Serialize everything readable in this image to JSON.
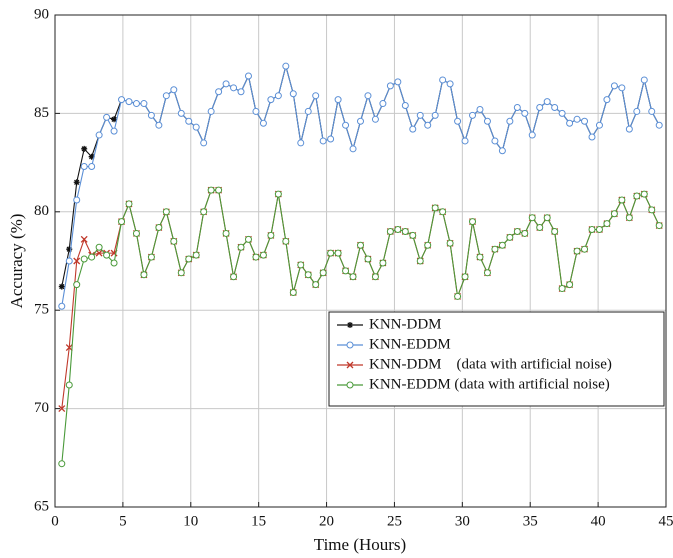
{
  "chart_data": {
    "type": "line",
    "xlabel": "Time (Hours)",
    "ylabel": "Accuracy (%)",
    "xlim": [
      0,
      45
    ],
    "xticks": [
      0,
      5,
      10,
      15,
      20,
      25,
      30,
      35,
      40,
      45
    ],
    "ylim": [
      65,
      90
    ],
    "yticks": [
      65,
      70,
      75,
      80,
      85,
      90
    ],
    "grid": true,
    "legend": "right",
    "x": [
      0.5,
      1.05,
      1.6,
      2.15,
      2.7,
      3.25,
      3.8,
      4.35,
      4.9,
      5.45,
      6,
      6.55,
      7.1,
      7.65,
      8.2,
      8.75,
      9.3,
      9.85,
      10.4,
      10.95,
      11.5,
      12.05,
      12.6,
      13.15,
      13.7,
      14.25,
      14.8,
      15.35,
      15.9,
      16.45,
      17,
      17.55,
      18.1,
      18.65,
      19.2,
      19.75,
      20.3,
      20.85,
      21.4,
      21.95,
      22.5,
      23.05,
      23.6,
      24.15,
      24.7,
      25.25,
      25.8,
      26.35,
      26.9,
      27.45,
      28,
      28.55,
      29.1,
      29.65,
      30.2,
      30.75,
      31.3,
      31.85,
      32.4,
      32.95,
      33.5,
      34.05,
      34.6,
      35.15,
      35.7,
      36.25,
      36.8,
      37.35,
      37.9,
      38.45,
      39,
      39.55,
      40.1,
      40.65,
      41.2,
      41.75,
      42.3,
      42.85,
      43.4,
      43.95,
      44.5
    ],
    "series": [
      {
        "name": "KNN-DDM",
        "color": "#111111",
        "marker": "star",
        "values": [
          76.2,
          78.1,
          81.5,
          83.2,
          82.8,
          83.9,
          84.8,
          84.7,
          85.7,
          85.6,
          85.5,
          85.5,
          84.9,
          84.4,
          85.9,
          86.2,
          85,
          84.6,
          84.3,
          83.5,
          85.1,
          86.1,
          86.5,
          86.3,
          86.1,
          86.9,
          85.1,
          84.5,
          85.7,
          85.9,
          87.4,
          86,
          83.5,
          85.1,
          85.9,
          83.6,
          83.7,
          85.7,
          84.4,
          83.2,
          84.6,
          85.9,
          84.7,
          85.5,
          86.4,
          86.6,
          85.4,
          84.2,
          84.9,
          84.4,
          84.9,
          86.7,
          86.5,
          84.6,
          83.6,
          84.9,
          85.2,
          84.6,
          83.6,
          83.1,
          84.6,
          85.3,
          85,
          83.9,
          85.3,
          85.6,
          85.3,
          85,
          84.5,
          84.7,
          84.6,
          83.8,
          84.4,
          85.7,
          86.4,
          86.3,
          84.2,
          85.1,
          86.7,
          85.1,
          84.4
        ]
      },
      {
        "name": "KNN-EDDM",
        "color": "#5b8fd6",
        "marker": "circle",
        "values": [
          75.2,
          77.5,
          80.6,
          82.3,
          82.3,
          83.9,
          84.8,
          84.1,
          85.7,
          85.6,
          85.5,
          85.5,
          84.9,
          84.4,
          85.9,
          86.2,
          85,
          84.6,
          84.3,
          83.5,
          85.1,
          86.1,
          86.5,
          86.3,
          86.1,
          86.9,
          85.1,
          84.5,
          85.7,
          85.9,
          87.4,
          86,
          83.5,
          85.1,
          85.9,
          83.6,
          83.7,
          85.7,
          84.4,
          83.2,
          84.6,
          85.9,
          84.7,
          85.5,
          86.4,
          86.6,
          85.4,
          84.2,
          84.9,
          84.4,
          84.9,
          86.7,
          86.5,
          84.6,
          83.6,
          84.9,
          85.2,
          84.6,
          83.6,
          83.1,
          84.6,
          85.3,
          85,
          83.9,
          85.3,
          85.6,
          85.3,
          85,
          84.5,
          84.7,
          84.6,
          83.8,
          84.4,
          85.7,
          86.4,
          86.3,
          84.2,
          85.1,
          86.7,
          85.1,
          84.4
        ]
      },
      {
        "name": "KNN-DDM    (data with artificial noise)",
        "color": "#c0392b",
        "marker": "cross",
        "values": [
          70,
          73.1,
          77.5,
          78.6,
          77.8,
          77.9,
          77.9,
          77.9,
          79.5,
          80.4,
          78.9,
          76.8,
          77.7,
          79.2,
          80.0,
          78.5,
          76.9,
          77.6,
          77.8,
          80.0,
          81.1,
          81.1,
          78.9,
          76.7,
          78.2,
          78.6,
          77.7,
          77.8,
          78.8,
          80.9,
          78.5,
          75.9,
          77.3,
          76.8,
          76.3,
          76.9,
          77.9,
          77.9,
          77.0,
          76.7,
          78.3,
          77.6,
          76.7,
          77.4,
          79.0,
          79.1,
          79.0,
          78.8,
          77.5,
          78.3,
          80.2,
          80.0,
          78.4,
          75.7,
          76.7,
          79.5,
          77.7,
          76.9,
          78.1,
          78.3,
          78.7,
          79.0,
          78.9,
          79.7,
          79.2,
          79.7,
          79.0,
          76.1,
          76.3,
          78.0,
          78.1,
          79.1,
          79.1,
          79.4,
          79.9,
          80.6,
          79.7,
          80.8,
          80.9,
          80.1,
          79.3
        ]
      },
      {
        "name": "KNN-EDDM (data with artificial noise)",
        "color": "#4a9a3a",
        "marker": "circle",
        "values": [
          67.2,
          71.2,
          76.3,
          77.6,
          77.7,
          78.2,
          77.8,
          77.4,
          79.5,
          80.4,
          78.9,
          76.8,
          77.7,
          79.2,
          80.0,
          78.5,
          76.9,
          77.6,
          77.8,
          80.0,
          81.1,
          81.1,
          78.9,
          76.7,
          78.2,
          78.6,
          77.7,
          77.8,
          78.8,
          80.9,
          78.5,
          75.9,
          77.3,
          76.8,
          76.3,
          76.9,
          77.9,
          77.9,
          77.0,
          76.7,
          78.3,
          77.6,
          76.7,
          77.4,
          79.0,
          79.1,
          79.0,
          78.8,
          77.5,
          78.3,
          80.2,
          80.0,
          78.4,
          75.7,
          76.7,
          79.5,
          77.7,
          76.9,
          78.1,
          78.3,
          78.7,
          79.0,
          78.9,
          79.7,
          79.2,
          79.7,
          79.0,
          76.1,
          76.3,
          78.0,
          78.1,
          79.1,
          79.1,
          79.4,
          79.9,
          80.6,
          79.7,
          80.8,
          80.9,
          80.1,
          79.3
        ]
      }
    ]
  }
}
